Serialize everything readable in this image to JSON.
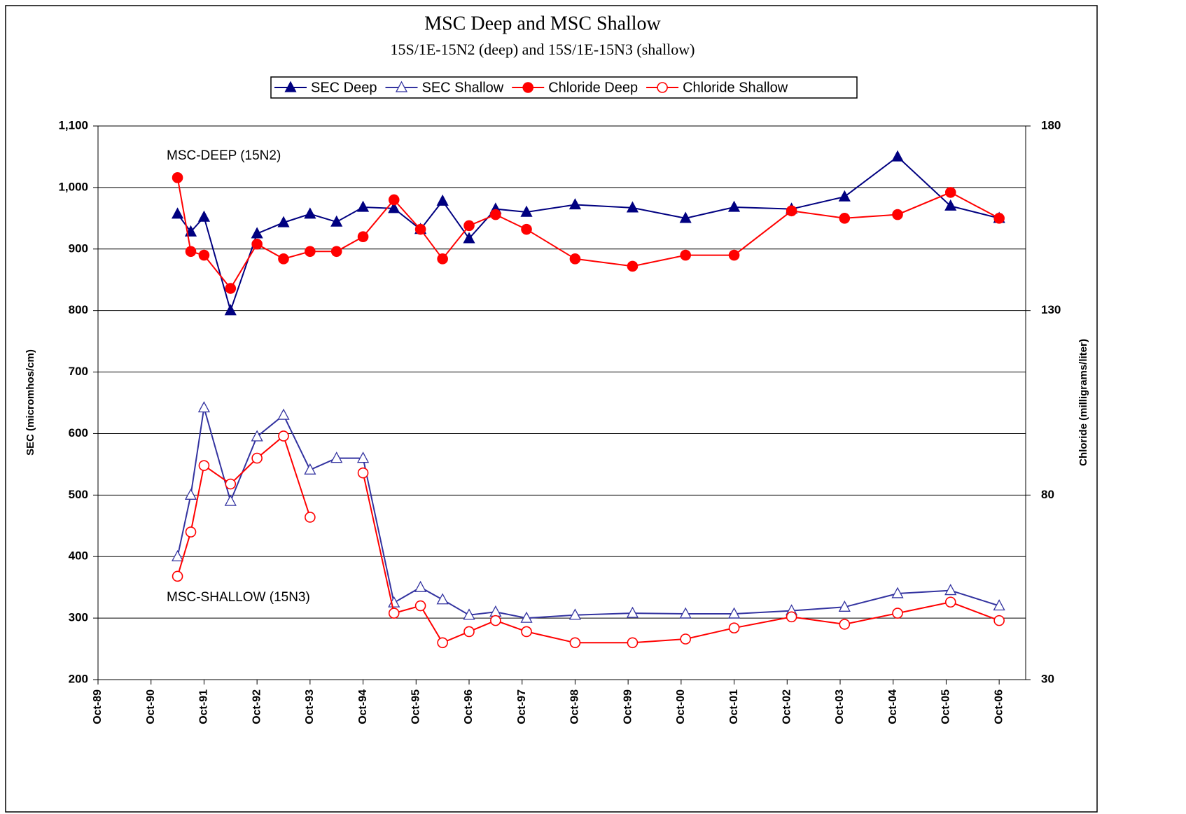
{
  "chart_data": {
    "type": "line",
    "title": "MSC Deep and MSC Shallow",
    "subtitle": "15S/1E-15N2 (deep) and 15S/1E-15N3 (shallow)",
    "y_label": "SEC (micromhos/cm)",
    "y2_label": "Chloride (milligrams/liter)",
    "annotations": [
      "MSC-DEEP (15N2)",
      "MSC-SHALLOW (15N3)"
    ],
    "x": [
      "Apr-91",
      "Jul-91",
      "Oct-91",
      "Apr-92",
      "Oct-92",
      "Apr-93",
      "Oct-93",
      "Apr-94",
      "Oct-94",
      "May-95",
      "Nov-95",
      "Apr-96",
      "Oct-96",
      "Apr-97",
      "Nov-97",
      "Oct-98",
      "Nov-99",
      "Nov-00",
      "Oct-01",
      "Nov-02",
      "Nov-03",
      "Nov-04",
      "Nov-05",
      "Oct-06"
    ],
    "xlim": [
      "Oct-89",
      "Apr-07"
    ],
    "xticks": [
      "Oct-89",
      "Oct-90",
      "Oct-91",
      "Oct-92",
      "Oct-93",
      "Oct-94",
      "Oct-95",
      "Oct-96",
      "Oct-97",
      "Oct-98",
      "Oct-99",
      "Oct-00",
      "Oct-01",
      "Oct-02",
      "Oct-03",
      "Oct-04",
      "Oct-05",
      "Oct-06"
    ],
    "ylim": [
      200,
      1100
    ],
    "yticks": [
      200,
      300,
      400,
      500,
      600,
      700,
      800,
      900,
      {
        "value": 1000,
        "label": "1,000"
      },
      {
        "value": 1100,
        "label": "1,100"
      }
    ],
    "y2lim": [
      30,
      180
    ],
    "y2ticks": [
      30,
      80,
      130,
      180
    ],
    "grid": true,
    "series": [
      {
        "name": "SEC Deep",
        "color": "#000080",
        "marker": "triangle",
        "filled": true,
        "values": [
          957,
          928,
          952,
          800,
          925,
          943,
          957,
          944,
          968,
          966,
          932,
          978,
          917,
          965,
          960,
          972,
          967,
          950,
          968,
          965,
          985,
          1050,
          970,
          950
        ]
      },
      {
        "name": "SEC Shallow",
        "color": "#3333a0",
        "marker": "triangle",
        "filled": false,
        "values": [
          400,
          500,
          642,
          490,
          595,
          630,
          541,
          560,
          560,
          325,
          350,
          330,
          305,
          310,
          300,
          305,
          308,
          307,
          307,
          312,
          318,
          340,
          345,
          320
        ]
      },
      {
        "name": "Chloride Deep",
        "color": "#ff0000",
        "marker": "circle",
        "filled": true,
        "axis": "y2",
        "values": [
          166,
          146,
          145,
          136,
          148,
          144,
          146,
          146,
          150,
          160,
          152,
          144,
          153,
          156,
          152,
          144,
          142,
          145,
          145,
          157,
          155,
          156,
          162,
          155
        ]
      },
      {
        "name": "Chloride Shallow",
        "color": "#ff0000",
        "marker": "circle",
        "filled": false,
        "axis": "y2",
        "values": [
          58,
          70,
          88,
          83,
          90,
          96,
          74,
          null,
          86,
          48,
          50,
          40,
          43,
          46,
          43,
          40,
          40,
          41,
          44,
          47,
          45,
          48,
          51,
          46
        ]
      }
    ]
  }
}
